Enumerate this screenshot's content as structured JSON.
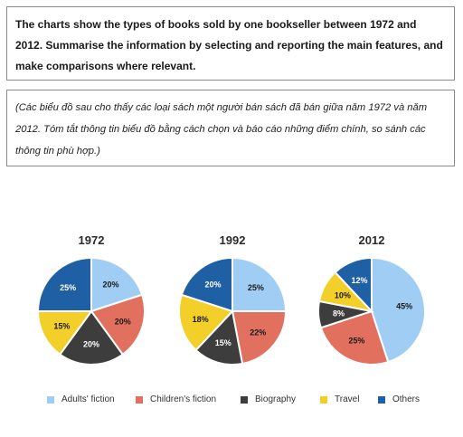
{
  "task": {
    "text": "The charts show the types of books sold by one bookseller between 1972 and 2012. Summarise the information by selecting and reporting the main features, and make comparisons where relevant."
  },
  "translation": {
    "text": "(Các biểu đồ sau cho thấy các loại sách một người bán sách đã bán giữa năm 1972 và năm 2012. Tóm tắt thông tin biểu đồ bằng cách chọn và báo cáo những điểm chính, so sánh các thông tin phù hợp.)"
  },
  "colors": {
    "adults_fiction": "#9fcdf3",
    "childrens_fiction": "#e2705f",
    "biography": "#3d3d3d",
    "travel": "#f3cf2a",
    "others": "#1f5fa3"
  },
  "chart_data": [
    {
      "type": "pie",
      "title": "1972",
      "labels": [
        "Adults' fiction",
        "Children's fiction",
        "Biography",
        "Travel",
        "Others"
      ],
      "values": [
        20,
        20,
        20,
        15,
        25
      ],
      "value_labels": [
        "20%",
        "20%",
        "20%",
        "15%",
        "25%"
      ]
    },
    {
      "type": "pie",
      "title": "1992",
      "labels": [
        "Adults' fiction",
        "Children's fiction",
        "Biography",
        "Travel",
        "Others"
      ],
      "values": [
        25,
        22,
        15,
        18,
        20
      ],
      "value_labels": [
        "25%",
        "22%",
        "15%",
        "18%",
        "20%"
      ]
    },
    {
      "type": "pie",
      "title": "2012",
      "labels": [
        "Adults' fiction",
        "Children's fiction",
        "Biography",
        "Travel",
        "Others"
      ],
      "values": [
        45,
        25,
        8,
        10,
        12
      ],
      "value_labels": [
        "45%",
        "25%",
        "8%",
        "10%",
        "12%"
      ]
    }
  ],
  "legend": [
    {
      "label": "Adults' fiction",
      "color_key": "adults_fiction"
    },
    {
      "label": "Children's fiction",
      "color_key": "childrens_fiction"
    },
    {
      "label": "Biography",
      "color_key": "biography"
    },
    {
      "label": "Travel",
      "color_key": "travel"
    },
    {
      "label": "Others",
      "color_key": "others"
    }
  ],
  "legend_placement": "bottom"
}
